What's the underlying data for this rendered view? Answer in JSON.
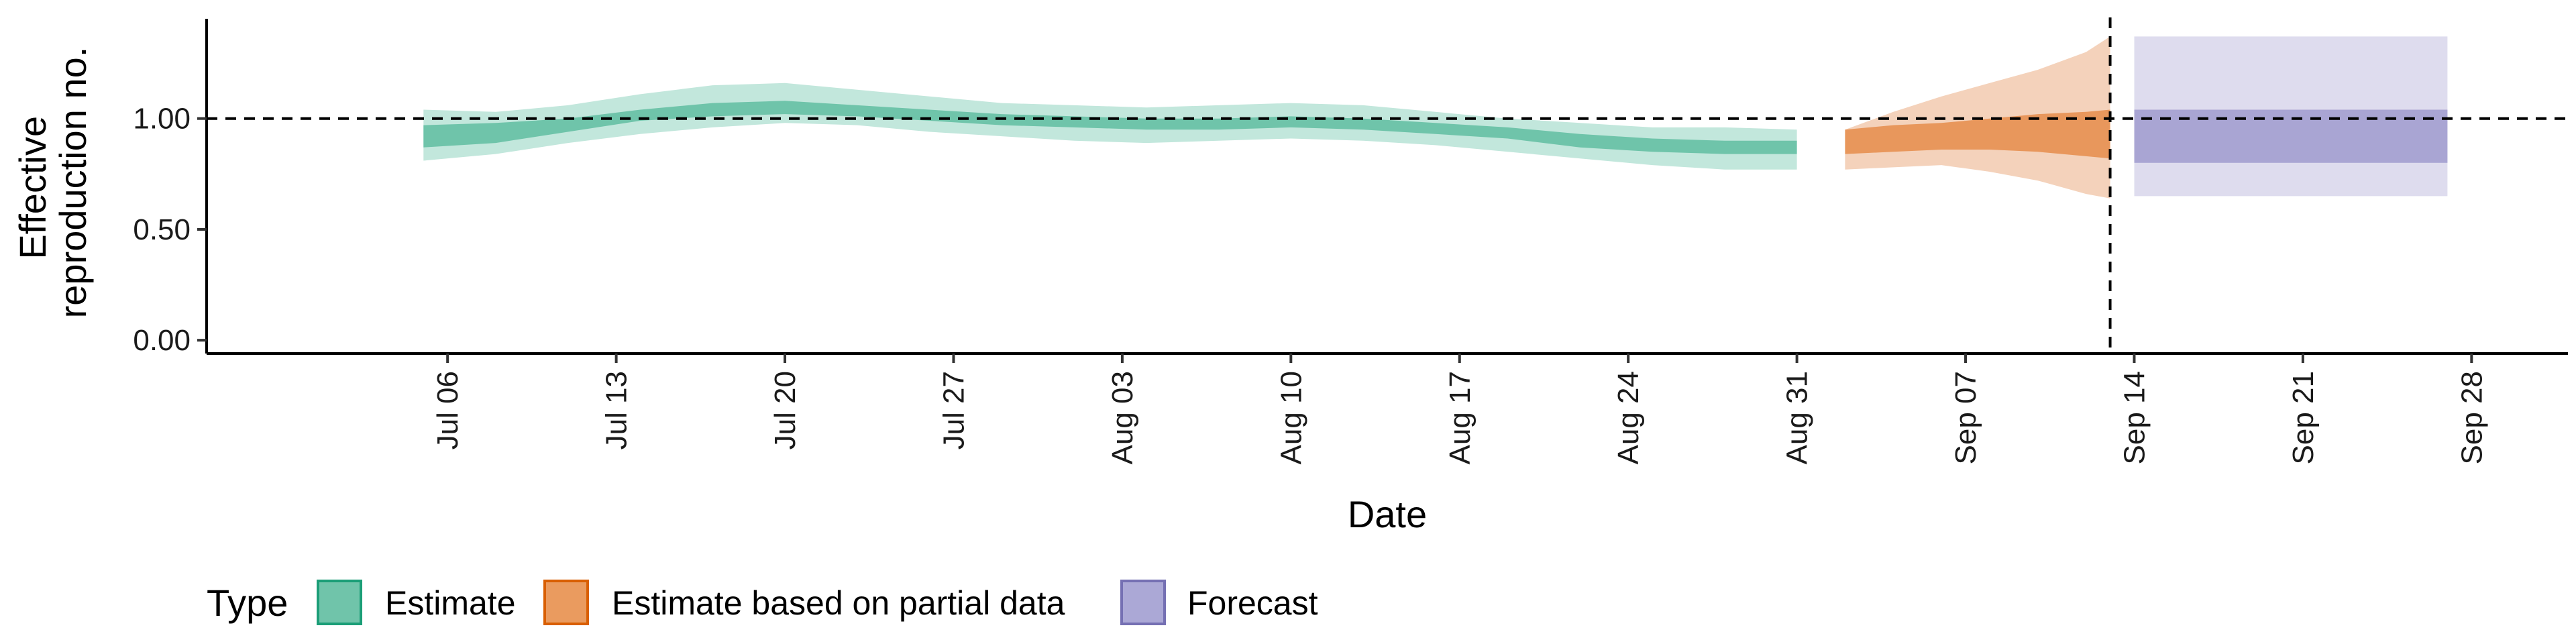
{
  "chart_data": {
    "type": "area",
    "xlabel": "Date",
    "ylabel_lines": [
      "Effective",
      "reproduction no."
    ],
    "x_tick_labels": [
      "Jul 06",
      "Jul 13",
      "Jul 20",
      "Jul 27",
      "Aug 03",
      "Aug 10",
      "Aug 17",
      "Aug 24",
      "Aug 31",
      "Sep 07",
      "Sep 14",
      "Sep 21",
      "Sep 28"
    ],
    "x_tick_dates": [
      "2020-07-06",
      "2020-07-13",
      "2020-07-20",
      "2020-07-27",
      "2020-08-03",
      "2020-08-10",
      "2020-08-17",
      "2020-08-24",
      "2020-08-31",
      "2020-09-07",
      "2020-09-14",
      "2020-09-21",
      "2020-09-28"
    ],
    "xlim": [
      "2020-06-26",
      "2020-10-02"
    ],
    "y_ticks": [
      0.0,
      0.5,
      1.0
    ],
    "y_tick_labels": [
      "0.00",
      "0.50",
      "1.00"
    ],
    "ylim": [
      -0.06,
      1.45
    ],
    "reference_hline": 1.0,
    "reference_vline": "2020-09-13",
    "grid": false,
    "legend": {
      "title": "Type",
      "position": "bottom-left",
      "items": [
        {
          "label": "Estimate",
          "key": "estimate"
        },
        {
          "label": "Estimate based on partial data",
          "key": "partial"
        },
        {
          "label": "Forecast",
          "key": "forecast"
        }
      ]
    },
    "series": [
      {
        "key": "estimate",
        "x": [
          "2020-07-05",
          "2020-07-08",
          "2020-07-11",
          "2020-07-14",
          "2020-07-17",
          "2020-07-20",
          "2020-07-23",
          "2020-07-26",
          "2020-07-29",
          "2020-08-01",
          "2020-08-04",
          "2020-08-07",
          "2020-08-10",
          "2020-08-13",
          "2020-08-16",
          "2020-08-19",
          "2020-08-22",
          "2020-08-25",
          "2020-08-28",
          "2020-08-31"
        ],
        "outer_lower": [
          0.81,
          0.84,
          0.89,
          0.93,
          0.96,
          0.98,
          0.97,
          0.94,
          0.92,
          0.9,
          0.89,
          0.9,
          0.91,
          0.9,
          0.88,
          0.85,
          0.82,
          0.79,
          0.77,
          0.77
        ],
        "inner_lower": [
          0.87,
          0.89,
          0.94,
          0.99,
          1.01,
          1.02,
          1.01,
          0.99,
          0.97,
          0.96,
          0.95,
          0.95,
          0.96,
          0.95,
          0.93,
          0.91,
          0.87,
          0.85,
          0.84,
          0.84
        ],
        "inner_upper": [
          0.97,
          0.98,
          1.0,
          1.04,
          1.07,
          1.08,
          1.06,
          1.04,
          1.02,
          1.01,
          1.0,
          1.0,
          1.01,
          1.0,
          0.98,
          0.96,
          0.93,
          0.91,
          0.9,
          0.9
        ],
        "outer_upper": [
          1.04,
          1.03,
          1.06,
          1.11,
          1.15,
          1.16,
          1.13,
          1.1,
          1.07,
          1.06,
          1.05,
          1.06,
          1.07,
          1.06,
          1.03,
          1.0,
          0.98,
          0.96,
          0.96,
          0.95
        ],
        "color": "#1b9e77"
      },
      {
        "key": "partial",
        "x": [
          "2020-09-02",
          "2020-09-04",
          "2020-09-06",
          "2020-09-08",
          "2020-09-10",
          "2020-09-12",
          "2020-09-13"
        ],
        "outer_lower": [
          0.77,
          0.78,
          0.79,
          0.76,
          0.72,
          0.66,
          0.64
        ],
        "inner_lower": [
          0.84,
          0.85,
          0.86,
          0.86,
          0.85,
          0.83,
          0.82
        ],
        "inner_upper": [
          0.95,
          0.97,
          0.98,
          1.0,
          1.02,
          1.03,
          1.04
        ],
        "outer_upper": [
          0.95,
          1.03,
          1.1,
          1.16,
          1.22,
          1.3,
          1.37
        ],
        "color": "#d95f02"
      },
      {
        "key": "forecast",
        "x": [
          "2020-09-14",
          "2020-09-27"
        ],
        "outer_lower": [
          0.65,
          0.65
        ],
        "inner_lower": [
          0.8,
          0.8
        ],
        "inner_upper": [
          1.04,
          1.04
        ],
        "outer_upper": [
          1.37,
          1.37
        ],
        "color": "#7570b3"
      }
    ],
    "colors": {
      "estimate_outer": "#c2e7dc",
      "estimate_inner": "#6fc4aa",
      "partial_outer": "#f4d2bb",
      "partial_inner": "#e8975c",
      "forecast_outer": "#dedcee",
      "forecast_inner": "#a9a5d3",
      "legend_estimate_fill": "#70c4aa",
      "legend_estimate_border": "#1b9e77",
      "legend_partial_fill": "#ea9b5f",
      "legend_partial_border": "#d95f02",
      "legend_forecast_fill": "#aba8d6",
      "legend_forecast_border": "#7570b3"
    }
  }
}
